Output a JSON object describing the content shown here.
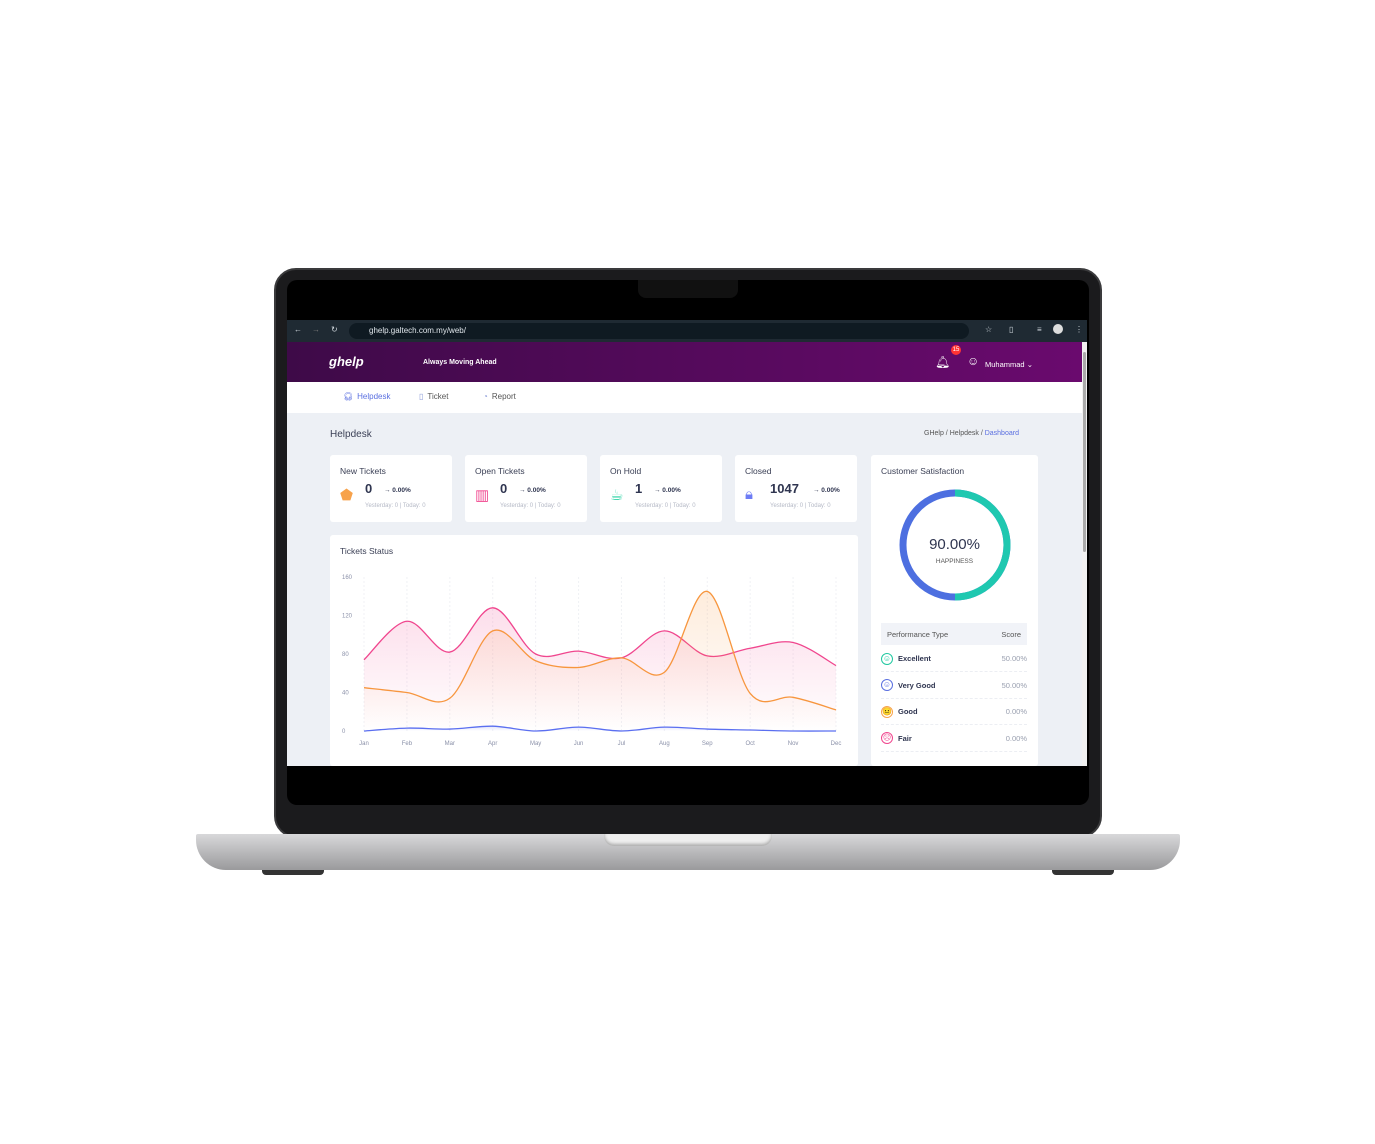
{
  "browser": {
    "url": "ghelp.galtech.com.my/web/"
  },
  "header": {
    "logo": "ghelp",
    "tagline": "Always Moving Ahead",
    "notification_count": "15",
    "user": "Muhammad"
  },
  "nav": [
    {
      "label": "Helpdesk",
      "icon": "headset-icon",
      "active": true
    },
    {
      "label": "Ticket",
      "icon": "clipboard-icon"
    },
    {
      "label": "Report",
      "icon": "pie-chart-icon"
    }
  ],
  "page": {
    "title": "Helpdesk",
    "breadcrumb": [
      "GHelp",
      "Helpdesk",
      "Dashboard"
    ]
  },
  "stats": [
    {
      "title": "New Tickets",
      "value": "0",
      "change": "→ 0.00%",
      "sub": "Yesterday: 0 | Today: 0",
      "icon": "tag-icon",
      "color": "#f7a24b"
    },
    {
      "title": "Open Tickets",
      "value": "0",
      "change": "→ 0.00%",
      "sub": "Yesterday: 0 | Today: 0",
      "icon": "book-icon",
      "color": "#f0468e"
    },
    {
      "title": "On Hold",
      "value": "1",
      "change": "→ 0.00%",
      "sub": "Yesterday: 0 | Today: 0",
      "icon": "coffee-icon",
      "color": "#2ed3a6"
    },
    {
      "title": "Closed",
      "value": "1047",
      "change": "→ 0.00%",
      "sub": "Yesterday: 0 | Today: 0",
      "icon": "lock-icon",
      "color": "#6d7cf5"
    }
  ],
  "satisfaction": {
    "title": "Customer Satisfaction",
    "value": "90.00%",
    "label": "HAPPINESS",
    "colors": [
      "#1fc8b0",
      "#4d6fe0"
    ],
    "table_headers": [
      "Performance Type",
      "Score"
    ],
    "rows": [
      {
        "name": "Excellent",
        "score": "50.00%",
        "color": "#1fc8a0",
        "face": "☺"
      },
      {
        "name": "Very Good",
        "score": "50.00%",
        "color": "#5a6fe0",
        "face": "☺"
      },
      {
        "name": "Good",
        "score": "0.00%",
        "color": "#f7a24b",
        "face": "😐"
      },
      {
        "name": "Fair",
        "score": "0.00%",
        "color": "#f0468e",
        "face": "☹"
      }
    ]
  },
  "chart_data": {
    "type": "line",
    "title": "Tickets Status",
    "categories": [
      "Jan",
      "Feb",
      "Mar",
      "Apr",
      "May",
      "Jun",
      "Jul",
      "Aug",
      "Sep",
      "Oct",
      "Nov",
      "Dec"
    ],
    "ylim": [
      0,
      160
    ],
    "yticks": [
      0,
      40,
      80,
      120,
      160
    ],
    "grid": true,
    "series": [
      {
        "color": "#f0468e",
        "values": [
          74,
          114,
          82,
          128,
          80,
          83,
          76,
          104,
          78,
          86,
          92,
          68
        ]
      },
      {
        "color": "#f7963e",
        "values": [
          45,
          40,
          34,
          104,
          73,
          66,
          76,
          61,
          145,
          39,
          35,
          22
        ]
      },
      {
        "color": "#5b6ff0",
        "values": [
          0,
          3,
          2,
          5,
          0,
          4,
          0,
          4,
          2,
          1,
          0,
          0
        ]
      }
    ]
  }
}
